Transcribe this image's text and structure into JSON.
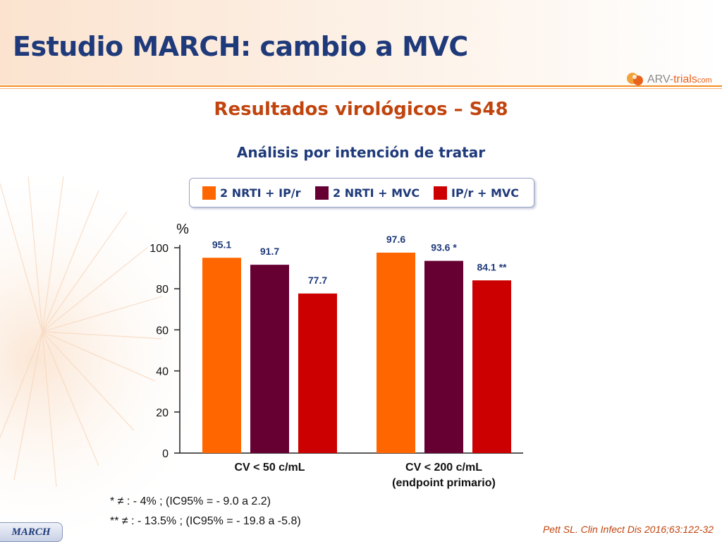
{
  "slide": {
    "title": "Estudio MARCH: cambio a MVC",
    "subtitle": "Resultados virológicos – S48",
    "subtitle2": "Análisis por intención de tratar",
    "logo": {
      "brand": "ARV-",
      "brand_hl": "trials",
      "suffix": "com",
      "icon": "arv-trials-logo-icon"
    },
    "footnotes": [
      "* ≠ : - 4% ; (IC95% = - 9.0 a 2.2)",
      "** ≠ : - 13.5% ; (IC95% = - 19.8 a -5.8)"
    ],
    "reference": "Pett SL. Clin Infect Dis 2016;63:122-32",
    "tag": "MARCH",
    "colors": {
      "title": "#1f3a7a",
      "accent": "#c1440e",
      "rule": "#f28c1e"
    }
  },
  "chart_data": {
    "type": "bar",
    "ylabel": "%",
    "ylim": [
      0,
      100
    ],
    "yticks": [
      0,
      20,
      40,
      60,
      80,
      100
    ],
    "categories": [
      "CV < 50 c/mL",
      "CV < 200 c/mL\n(endpoint primario)"
    ],
    "series": [
      {
        "name": "2 NRTI + IP/r",
        "color": "#ff6600",
        "values": [
          95.1,
          97.6
        ],
        "labels": [
          "95.1",
          "97.6"
        ]
      },
      {
        "name": "2 NRTI + MVC",
        "color": "#660033",
        "values": [
          91.7,
          93.6
        ],
        "labels": [
          "91.7",
          "93.6 *"
        ]
      },
      {
        "name": "IP/r + MVC",
        "color": "#cc0000",
        "values": [
          77.7,
          84.1
        ],
        "labels": [
          "77.7",
          "84.1 **"
        ]
      }
    ],
    "legend_position": "top",
    "grid": false
  }
}
